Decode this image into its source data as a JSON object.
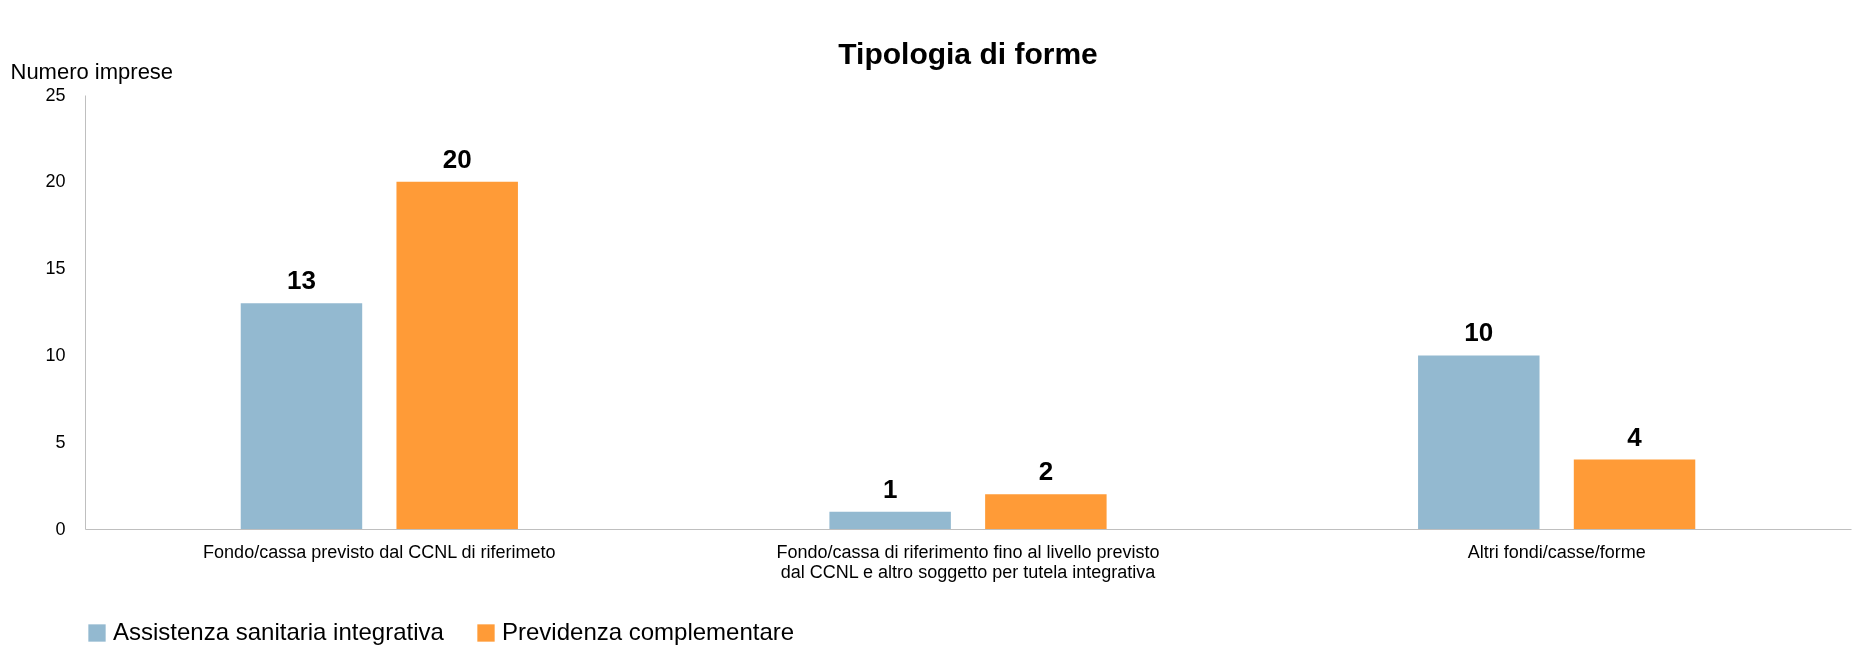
{
  "chart_data": {
    "type": "bar",
    "title": "Tipologia di forme",
    "ylabel": "Numero imprese",
    "categories": [
      "Fondo/cassa previsto dal CCNL di riferimeto",
      "Fondo/cassa di riferimento fino al livello previsto\ndal CCNL e altro soggetto per tutela integrativa",
      "Altri fondi/casse/forme"
    ],
    "series": [
      {
        "name": "Assistenza sanitaria integrativa",
        "color": "#93b9d0",
        "values": [
          13,
          1,
          10
        ]
      },
      {
        "name": "Previdenza complementare",
        "color": "#ff9b37",
        "values": [
          20,
          2,
          4
        ]
      }
    ],
    "ylim": [
      0,
      25
    ],
    "yticks": [
      0,
      5,
      10,
      15,
      20,
      25
    ],
    "grid": false,
    "legend": "bottom",
    "data_labels": true
  }
}
